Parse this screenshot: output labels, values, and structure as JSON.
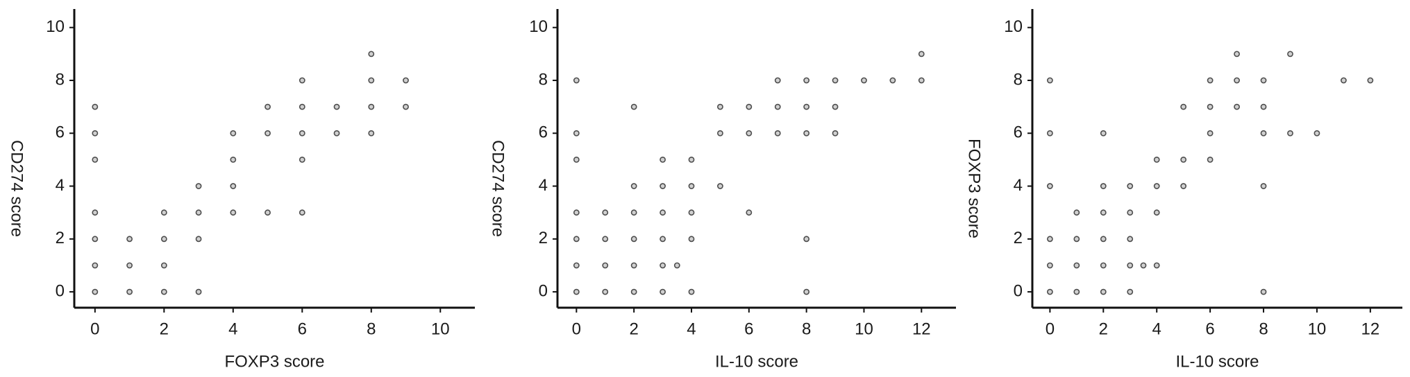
{
  "chart_data": [
    {
      "type": "scatter",
      "x_label": "FOXP3 score",
      "y_label": "CD274 score",
      "color": "#4d4d4d",
      "x": [
        0,
        0,
        0,
        0,
        0,
        0,
        0,
        1,
        1,
        1,
        2,
        2,
        2,
        2,
        3,
        3,
        3,
        3,
        4,
        4,
        4,
        4,
        5,
        5,
        5,
        6,
        6,
        6,
        6,
        6,
        7,
        7,
        8,
        8,
        8,
        8,
        9,
        9
      ],
      "y": [
        0,
        1,
        2,
        3,
        5,
        6,
        7,
        0,
        1,
        2,
        0,
        1,
        2,
        3,
        0,
        2,
        3,
        4,
        3,
        4,
        5,
        6,
        3,
        6,
        7,
        3,
        5,
        6,
        7,
        8,
        6,
        7,
        6,
        7,
        8,
        9,
        7,
        8
      ],
      "xlim": [
        -0.6,
        11
      ],
      "ylim": [
        -0.6,
        10.7
      ],
      "xticks": [
        0,
        2,
        4,
        6,
        8,
        10
      ],
      "yticks": [
        0,
        2,
        4,
        6,
        8,
        10
      ]
    },
    {
      "type": "scatter",
      "x_label": "IL-10 score",
      "y_label": "CD274 score",
      "color": "#4d4d4d",
      "x": [
        0,
        0,
        0,
        0,
        0,
        0,
        0,
        1,
        1,
        1,
        1,
        2,
        2,
        2,
        2,
        2,
        2,
        3,
        3,
        3,
        3,
        3,
        3,
        3.5,
        4,
        4,
        4,
        4,
        4,
        5,
        5,
        5,
        6,
        6,
        6,
        7,
        7,
        7,
        8,
        8,
        8,
        8,
        8,
        9,
        9,
        9,
        10,
        11,
        12,
        12
      ],
      "y": [
        0,
        1,
        2,
        3,
        5,
        6,
        8,
        0,
        1,
        2,
        3,
        0,
        1,
        2,
        3,
        4,
        7,
        0,
        1,
        2,
        3,
        4,
        5,
        1,
        0,
        2,
        3,
        4,
        5,
        4,
        6,
        7,
        3,
        6,
        7,
        6,
        7,
        8,
        0,
        2,
        6,
        7,
        8,
        6,
        7,
        8,
        8,
        8,
        8,
        9
      ],
      "xlim": [
        -0.66,
        13.2
      ],
      "ylim": [
        -0.6,
        10.7
      ],
      "xticks": [
        0,
        2,
        4,
        6,
        8,
        10,
        12
      ],
      "yticks": [
        0,
        2,
        4,
        6,
        8,
        10
      ]
    },
    {
      "type": "scatter",
      "x_label": "IL-10 score",
      "y_label": "FOXP3 score",
      "color": "#4d4d4d",
      "x": [
        0,
        0,
        0,
        0,
        0,
        0,
        1,
        1,
        1,
        1,
        2,
        2,
        2,
        2,
        2,
        2,
        3,
        3,
        3,
        3,
        3,
        3.5,
        4,
        4,
        4,
        4,
        5,
        5,
        5,
        6,
        6,
        6,
        6,
        7,
        7,
        7,
        8,
        8,
        8,
        8,
        8,
        9,
        9,
        10,
        11,
        12
      ],
      "y": [
        0,
        1,
        2,
        4,
        6,
        8,
        0,
        1,
        2,
        3,
        0,
        1,
        2,
        3,
        4,
        6,
        0,
        1,
        2,
        3,
        4,
        1,
        1,
        3,
        4,
        5,
        4,
        5,
        7,
        5,
        6,
        7,
        8,
        7,
        8,
        9,
        0,
        4,
        6,
        7,
        8,
        6,
        9,
        6,
        8,
        8
      ],
      "xlim": [
        -0.66,
        13.2
      ],
      "ylim": [
        -0.6,
        10.7
      ],
      "xticks": [
        0,
        2,
        4,
        6,
        8,
        10,
        12
      ],
      "yticks": [
        0,
        2,
        4,
        6,
        8,
        10
      ]
    }
  ]
}
